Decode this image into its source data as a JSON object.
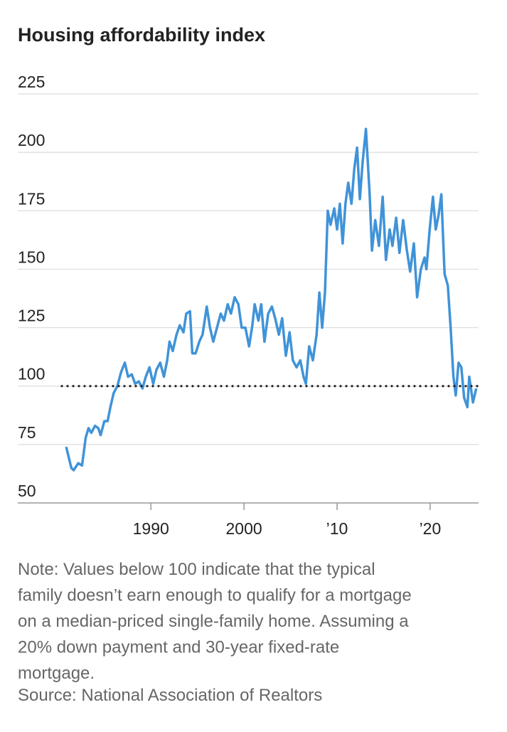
{
  "chart_data": {
    "type": "line",
    "title": "Housing affordability index",
    "xlim": [
      1975.7,
      2025.2
    ],
    "xticks": [
      1990,
      2000,
      {
        "value": 2010,
        "label": "’10"
      },
      {
        "value": 2020,
        "label": "’20"
      }
    ],
    "ylim": [
      50,
      225
    ],
    "yticks": [
      50,
      75,
      100,
      125,
      150,
      175,
      200,
      225
    ],
    "grid": true,
    "reference_line": 100,
    "series": [
      {
        "color": "#4093d8",
        "x": [
          1980.9,
          1981.45,
          1981.7,
          1982.2,
          1982.6,
          1983.0,
          1983.3,
          1983.6,
          1984.0,
          1984.35,
          1984.6,
          1985.0,
          1985.35,
          1985.65,
          1986.0,
          1986.4,
          1986.8,
          1987.2,
          1987.55,
          1987.95,
          1988.3,
          1988.7,
          1989.1,
          1989.45,
          1989.85,
          1990.25,
          1990.6,
          1991.0,
          1991.4,
          1991.75,
          1992.0,
          1992.35,
          1992.75,
          1993.1,
          1993.5,
          1993.8,
          1994.2,
          1994.45,
          1994.8,
          1995.2,
          1995.55,
          1996.0,
          1996.35,
          1996.7,
          1997.1,
          1997.5,
          1997.85,
          1998.25,
          1998.6,
          1999.0,
          1999.4,
          1999.75,
          2000.15,
          2000.55,
          2000.9,
          2001.15,
          2001.55,
          2001.85,
          2002.2,
          2002.6,
          2003.0,
          2003.35,
          2003.75,
          2004.1,
          2004.5,
          2004.9,
          2005.25,
          2005.65,
          2006.05,
          2006.4,
          2006.65,
          2007.0,
          2007.4,
          2007.8,
          2008.1,
          2008.4,
          2008.7,
          2009.0,
          2009.3,
          2009.7,
          2010.0,
          2010.3,
          2010.6,
          2010.9,
          2011.2,
          2011.55,
          2011.85,
          2012.15,
          2012.45,
          2012.75,
          2013.1,
          2013.5,
          2013.75,
          2014.1,
          2014.5,
          2014.9,
          2015.25,
          2015.65,
          2015.95,
          2016.35,
          2016.7,
          2017.1,
          2017.5,
          2017.85,
          2018.25,
          2018.6,
          2019.0,
          2019.4,
          2019.6,
          2019.95,
          2020.3,
          2020.6,
          2020.9,
          2021.2,
          2021.55,
          2021.9,
          2022.2,
          2022.5,
          2022.75,
          2023.05,
          2023.35,
          2023.65,
          2024.0,
          2024.2,
          2024.6,
          2024.95
        ],
        "values": [
          74,
          65,
          64,
          67,
          66,
          78,
          82,
          80,
          83,
          82,
          79,
          85,
          85,
          91,
          97,
          100,
          106,
          110,
          104,
          105,
          101,
          102,
          99,
          104,
          108,
          101,
          107,
          110,
          104,
          111,
          119,
          115,
          122,
          126,
          123,
          131,
          132,
          114,
          114,
          119,
          122,
          134,
          125,
          119,
          125,
          131,
          128,
          135,
          131,
          138,
          135,
          125,
          125,
          117,
          126,
          135,
          128,
          135,
          119,
          131,
          134,
          129,
          122,
          129,
          113,
          123,
          111,
          108,
          111,
          104,
          101,
          117,
          111,
          122,
          140,
          125,
          140,
          175,
          169,
          176,
          167,
          178,
          161,
          178,
          187,
          178,
          193,
          202,
          180,
          196,
          210,
          182,
          158,
          171,
          160,
          181,
          154,
          167,
          160,
          172,
          157,
          171,
          158,
          149,
          161,
          138,
          150,
          155,
          150,
          167,
          181,
          167,
          173,
          182,
          148,
          143,
          125,
          104,
          96,
          110,
          108,
          95,
          91,
          104,
          93,
          99
        ]
      }
    ],
    "note": [
      "Note: Values below 100 indicate that the typical",
      "family doesn’t earn enough to qualify for a mortgage",
      "on a median-priced single-family home. Assuming a",
      "20% down payment and 30-year fixed-rate",
      "mortgage."
    ],
    "source": "Source: National Association of Realtors"
  }
}
